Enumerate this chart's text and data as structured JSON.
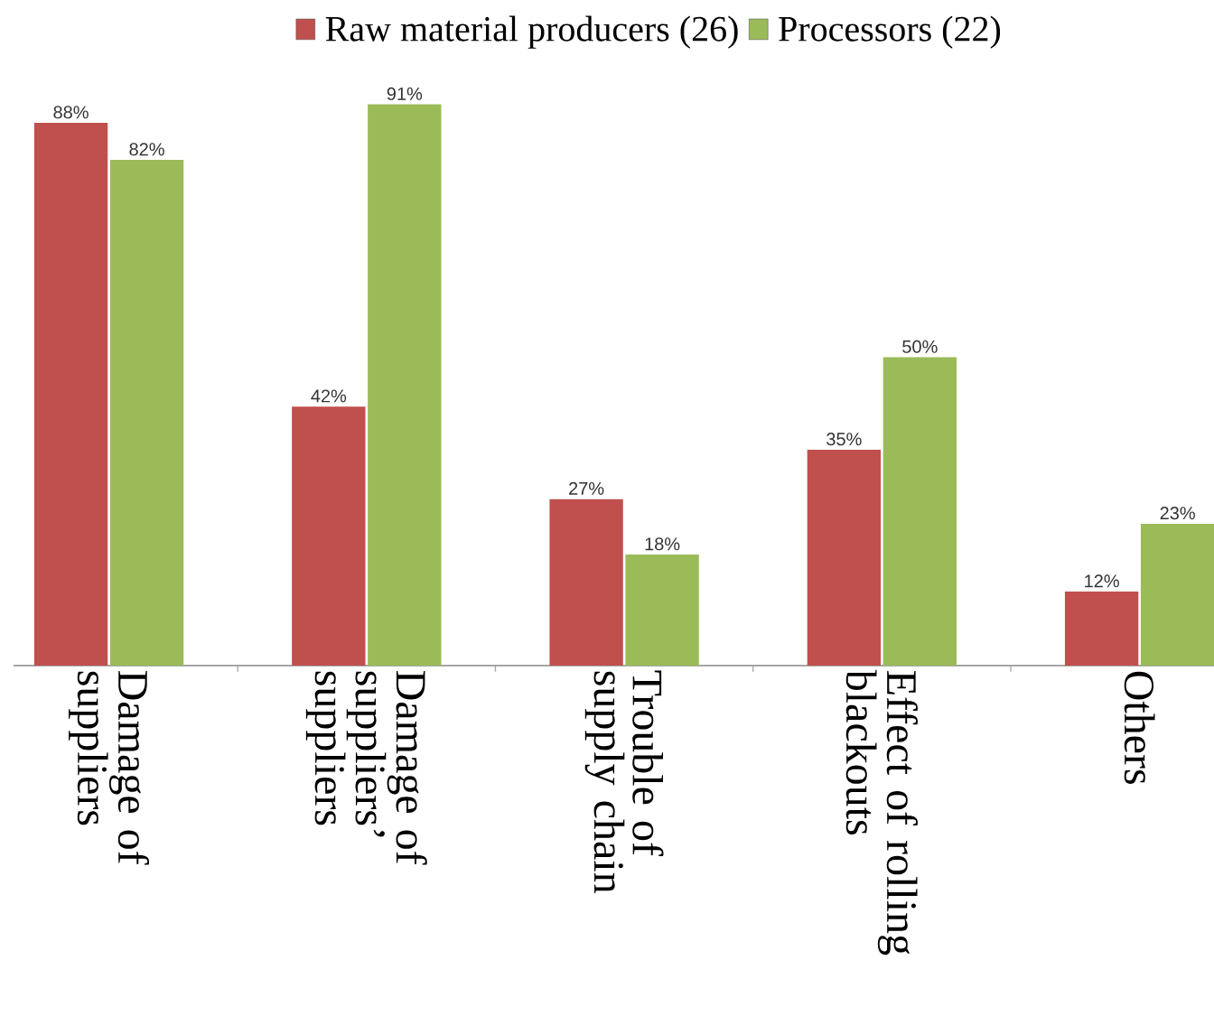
{
  "chart_data": {
    "type": "bar",
    "categories": [
      "Damage of suppliers",
      "Damage of suppliers’ suppliers",
      "Trouble of supply chain",
      "Effect of rolling blackouts",
      "Others"
    ],
    "series": [
      {
        "name": "Raw material producers (26)",
        "color": "#c0504d",
        "values": [
          88,
          42,
          27,
          35,
          12
        ],
        "value_labels": [
          "88%",
          "42%",
          "27%",
          "35%",
          "12%"
        ]
      },
      {
        "name": "Processors (22)",
        "color": "#9bbb59",
        "values": [
          82,
          91,
          18,
          50,
          23
        ],
        "value_labels": [
          "82%",
          "91%",
          "18%",
          "50%",
          "23%"
        ]
      }
    ],
    "legend": "top"
  }
}
